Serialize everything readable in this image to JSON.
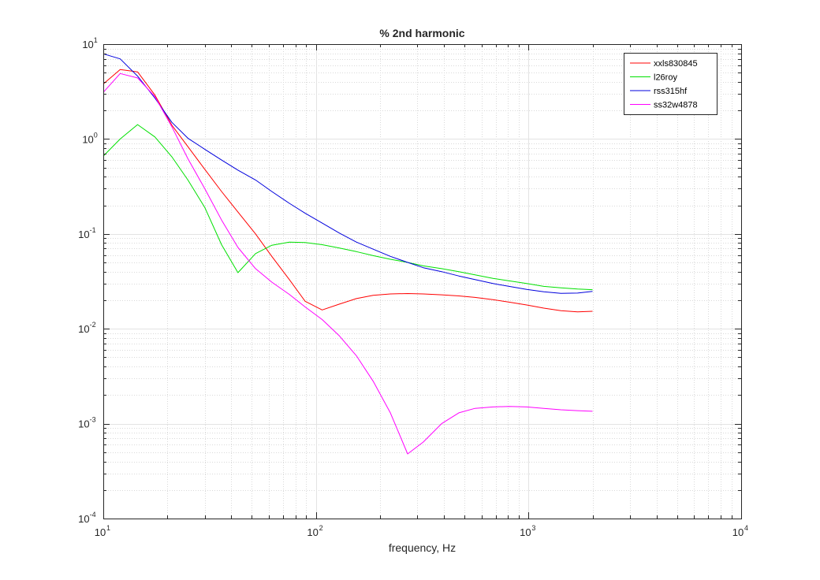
{
  "chart_data": {
    "type": "line",
    "title": "% 2nd harmonic",
    "xlabel": "frequency, Hz",
    "ylabel": "",
    "xscale": "log",
    "yscale": "log",
    "xlim": [
      10,
      10000
    ],
    "ylim": [
      0.0001,
      10
    ],
    "grid": "on (major and minor)",
    "legend_position": "top-right",
    "x_ticks": [
      {
        "base": "10",
        "exp": "1"
      },
      {
        "base": "10",
        "exp": "2"
      },
      {
        "base": "10",
        "exp": "3"
      },
      {
        "base": "10",
        "exp": "4"
      }
    ],
    "y_ticks": [
      {
        "base": "10",
        "exp": "-4"
      },
      {
        "base": "10",
        "exp": "-3"
      },
      {
        "base": "10",
        "exp": "-2"
      },
      {
        "base": "10",
        "exp": "-1"
      },
      {
        "base": "10",
        "exp": "0"
      },
      {
        "base": "10",
        "exp": "1"
      }
    ],
    "series": [
      {
        "name": "xxls830845",
        "color": "#ff0000",
        "points": [
          [
            10,
            3.8
          ],
          [
            12,
            5.4
          ],
          [
            14.5,
            5.1
          ],
          [
            17.5,
            2.9
          ],
          [
            21,
            1.4
          ],
          [
            25,
            0.83
          ],
          [
            30,
            0.48
          ],
          [
            36,
            0.28
          ],
          [
            43,
            0.17
          ],
          [
            52,
            0.1
          ],
          [
            62,
            0.058
          ],
          [
            75,
            0.033
          ],
          [
            89,
            0.0195
          ],
          [
            107,
            0.0158
          ],
          [
            129,
            0.0182
          ],
          [
            155,
            0.0208
          ],
          [
            186,
            0.0225
          ],
          [
            224,
            0.0233
          ],
          [
            270,
            0.0235
          ],
          [
            320,
            0.0233
          ],
          [
            390,
            0.0228
          ],
          [
            470,
            0.0222
          ],
          [
            560,
            0.0214
          ],
          [
            680,
            0.0203
          ],
          [
            810,
            0.0191
          ],
          [
            980,
            0.0178
          ],
          [
            1180,
            0.0165
          ],
          [
            1420,
            0.0155
          ],
          [
            1700,
            0.0151
          ],
          [
            2000,
            0.0153
          ]
        ]
      },
      {
        "name": "l26roy",
        "color": "#00e000",
        "points": [
          [
            10,
            0.66
          ],
          [
            12,
            1.0
          ],
          [
            14.5,
            1.42
          ],
          [
            17.5,
            1.05
          ],
          [
            21,
            0.65
          ],
          [
            25,
            0.37
          ],
          [
            30,
            0.19
          ],
          [
            36,
            0.077
          ],
          [
            43,
            0.039
          ],
          [
            52,
            0.062
          ],
          [
            62,
            0.076
          ],
          [
            75,
            0.082
          ],
          [
            89,
            0.081
          ],
          [
            107,
            0.077
          ],
          [
            129,
            0.071
          ],
          [
            155,
            0.065
          ],
          [
            186,
            0.059
          ],
          [
            224,
            0.054
          ],
          [
            270,
            0.05
          ],
          [
            320,
            0.046
          ],
          [
            390,
            0.043
          ],
          [
            470,
            0.04
          ],
          [
            560,
            0.037
          ],
          [
            680,
            0.034
          ],
          [
            810,
            0.032
          ],
          [
            980,
            0.03
          ],
          [
            1180,
            0.028
          ],
          [
            1420,
            0.027
          ],
          [
            1700,
            0.0262
          ],
          [
            2000,
            0.0258
          ]
        ]
      },
      {
        "name": "rss315hf",
        "color": "#0000dd",
        "points": [
          [
            10,
            7.9
          ],
          [
            12,
            7.0
          ],
          [
            14.5,
            4.6
          ],
          [
            17.5,
            2.7
          ],
          [
            21,
            1.5
          ],
          [
            25,
            1.02
          ],
          [
            30,
            0.78
          ],
          [
            36,
            0.6
          ],
          [
            43,
            0.47
          ],
          [
            52,
            0.37
          ],
          [
            62,
            0.28
          ],
          [
            75,
            0.21
          ],
          [
            89,
            0.165
          ],
          [
            107,
            0.13
          ],
          [
            129,
            0.102
          ],
          [
            155,
            0.082
          ],
          [
            186,
            0.069
          ],
          [
            224,
            0.058
          ],
          [
            270,
            0.05
          ],
          [
            320,
            0.044
          ],
          [
            390,
            0.04
          ],
          [
            470,
            0.036
          ],
          [
            560,
            0.033
          ],
          [
            680,
            0.03
          ],
          [
            810,
            0.028
          ],
          [
            980,
            0.026
          ],
          [
            1180,
            0.0245
          ],
          [
            1420,
            0.0236
          ],
          [
            1700,
            0.0238
          ],
          [
            2000,
            0.0248
          ]
        ]
      },
      {
        "name": "ss32w4878",
        "color": "#ff00ff",
        "points": [
          [
            10,
            3.1
          ],
          [
            12,
            4.9
          ],
          [
            14.5,
            4.4
          ],
          [
            17.5,
            2.8
          ],
          [
            21,
            1.35
          ],
          [
            25,
            0.62
          ],
          [
            30,
            0.3
          ],
          [
            36,
            0.14
          ],
          [
            43,
            0.072
          ],
          [
            52,
            0.043
          ],
          [
            62,
            0.031
          ],
          [
            75,
            0.023
          ],
          [
            89,
            0.017
          ],
          [
            107,
            0.0125
          ],
          [
            129,
            0.0084
          ],
          [
            155,
            0.0052
          ],
          [
            186,
            0.0028
          ],
          [
            224,
            0.0013
          ],
          [
            270,
            0.00048
          ],
          [
            320,
            0.00064
          ],
          [
            390,
            0.001
          ],
          [
            470,
            0.0013
          ],
          [
            560,
            0.00145
          ],
          [
            680,
            0.0015
          ],
          [
            810,
            0.00152
          ],
          [
            980,
            0.0015
          ],
          [
            1180,
            0.00145
          ],
          [
            1420,
            0.0014
          ],
          [
            1700,
            0.00137
          ],
          [
            2000,
            0.00135
          ]
        ]
      }
    ]
  }
}
